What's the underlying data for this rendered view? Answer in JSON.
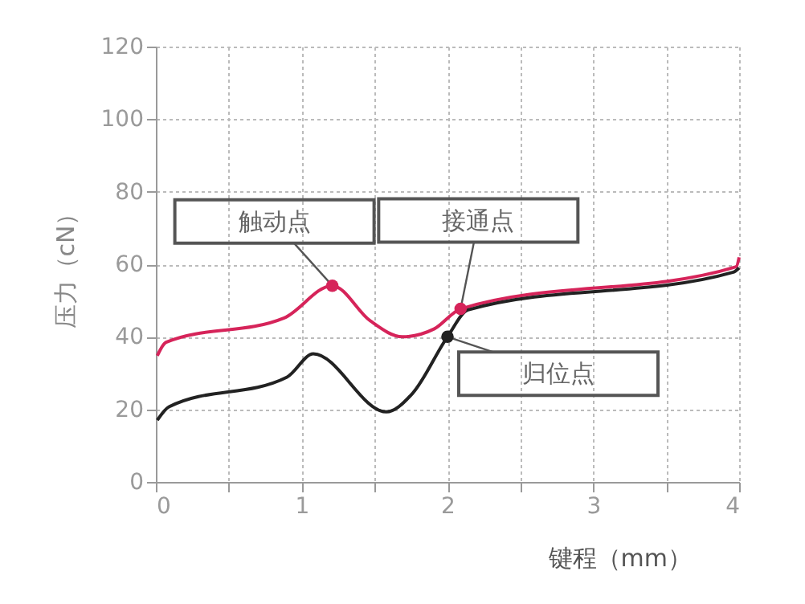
{
  "chart_data": {
    "type": "line",
    "xlabel": "键程（mm）",
    "ylabel": "压力（cN）",
    "xlim": [
      0,
      4
    ],
    "ylim": [
      0,
      120
    ],
    "xticks": [
      0,
      {
        "value": 0.5,
        "label": null
      },
      1,
      {
        "value": 1.5,
        "label": null
      },
      2,
      {
        "value": 2.5,
        "label": null
      },
      3,
      {
        "value": 3.5,
        "label": null
      },
      4
    ],
    "yticks": [
      0,
      20,
      40,
      60,
      80,
      100,
      120
    ],
    "grid": true,
    "legend": false,
    "series": [
      {
        "color": "#d6245a",
        "x": [
          0.01,
          0.07,
          0.88,
          1.21,
          1.47,
          1.69,
          1.91,
          2.09,
          3.98,
          4.0
        ],
        "values": [
          34.8,
          38.5,
          45.2,
          54.1,
          44.4,
          40.0,
          42.2,
          47.7,
          59.3,
          61.9
        ]
      },
      {
        "color": "#222222",
        "x": [
          0.01,
          0.09,
          0.9,
          1.08,
          1.58,
          1.76,
          2.0,
          2.14,
          3.96,
          4.0
        ],
        "values": [
          17.0,
          20.7,
          28.9,
          35.3,
          19.3,
          24.4,
          40.0,
          47.4,
          57.8,
          59.0
        ]
      }
    ],
    "annotations": [
      {
        "text": "触动点",
        "x": 1.21,
        "y": 54.1
      },
      {
        "text": "接通点",
        "x": 2.09,
        "y": 47.7
      },
      {
        "text": "归位点",
        "x": 2.0,
        "y": 40.0
      }
    ]
  }
}
